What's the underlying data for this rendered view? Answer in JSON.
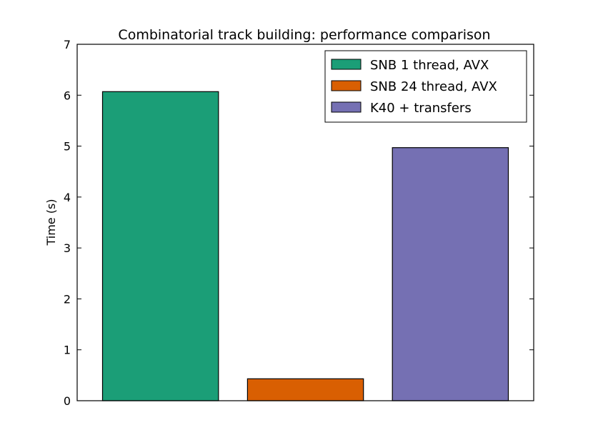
{
  "chart_data": {
    "type": "bar",
    "title": "Combinatorial track building: performance comparison",
    "xlabel": "",
    "ylabel": "Time (s)",
    "ylim": [
      0,
      7
    ],
    "yticks": [
      "0",
      "1",
      "2",
      "3",
      "4",
      "5",
      "6",
      "7"
    ],
    "xtick_labels_visible": false,
    "grid": false,
    "legend_position": "top-right",
    "series": [
      {
        "name": "SNB 1 thread, AVX",
        "value": 6.07,
        "color": "#1b9e77"
      },
      {
        "name": "SNB 24 thread, AVX",
        "value": 0.43,
        "color": "#d95f02"
      },
      {
        "name": "K40 + transfers",
        "value": 4.97,
        "color": "#7570b3"
      }
    ]
  }
}
